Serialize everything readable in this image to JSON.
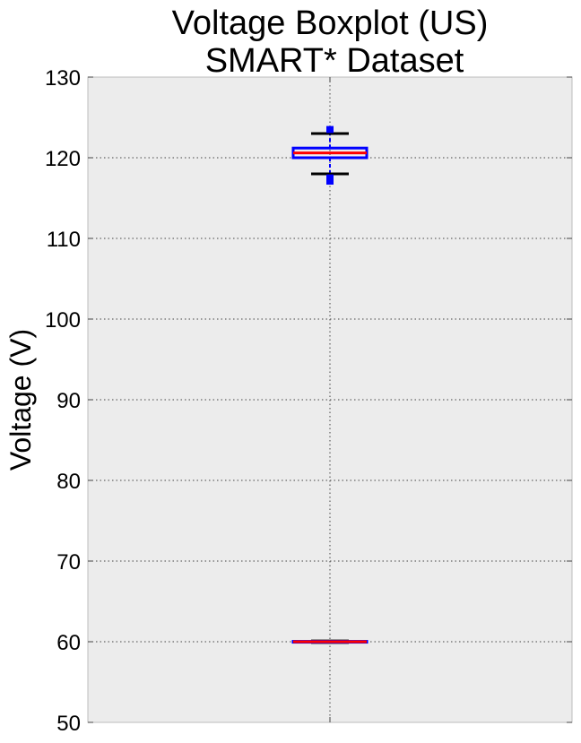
{
  "chart_data": {
    "type": "boxplot",
    "title_lines": [
      "Voltage Boxplot (US)",
      "SMART* Dataset"
    ],
    "xlabel": "",
    "ylabel": "Voltage (V)",
    "ylim": [
      50,
      130
    ],
    "yticks": [
      50,
      60,
      70,
      80,
      90,
      100,
      110,
      120,
      130
    ],
    "grid": true,
    "boxes": [
      {
        "whisker_low": 118.0,
        "q1": 120.0,
        "median": 120.6,
        "q3": 121.2,
        "whisker_high": 123.0,
        "fliers": [
          117.0,
          117.2,
          117.4,
          117.6,
          123.4,
          123.6
        ]
      },
      {
        "whisker_low": 59.9,
        "q1": 60.0,
        "median": 60.0,
        "q3": 60.05,
        "whisker_high": 60.1,
        "fliers": []
      }
    ],
    "colors": {
      "box": "#0000ff",
      "median": "#ff0000",
      "whisker_cap": "#000000",
      "whisker": "#0000ff",
      "flier": "#0000ff",
      "plot_background": "#ececec"
    }
  }
}
